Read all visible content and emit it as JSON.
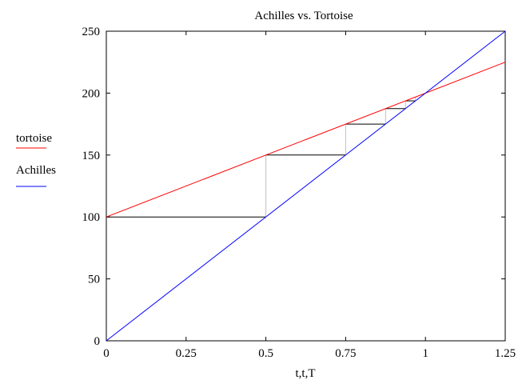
{
  "chart_data": {
    "type": "line",
    "title": "Achilles vs. Tortoise",
    "xlabel": "t,t,T",
    "ylabel": "",
    "xlim": [
      0,
      1.25
    ],
    "ylim": [
      0,
      250
    ],
    "x_ticks": [
      0,
      0.25,
      0.5,
      0.75,
      1,
      1.25
    ],
    "x_tick_labels": [
      "0",
      "0.25",
      "0.5",
      "0.75",
      "1",
      "1.25"
    ],
    "y_ticks": [
      0,
      50,
      100,
      150,
      200,
      250
    ],
    "y_tick_labels": [
      "0",
      "50",
      "100",
      "150",
      "200",
      "250"
    ],
    "grid": false,
    "legend_position": "left",
    "series": [
      {
        "name": "tortoise",
        "color": "#ff0000",
        "x": [
          0,
          1.25
        ],
        "y": [
          100,
          225
        ]
      },
      {
        "name": "Achilles",
        "color": "#0000ff",
        "x": [
          0,
          1.25
        ],
        "y": [
          0,
          250
        ]
      }
    ],
    "staircase": {
      "horizontal_color": "#000000",
      "vertical_color": "#c0c0c0",
      "x": [
        0,
        0.5,
        0.75,
        0.875,
        0.9375,
        0.96875
      ],
      "y": [
        100,
        150,
        175,
        187.5,
        193.75,
        196.875
      ]
    }
  }
}
